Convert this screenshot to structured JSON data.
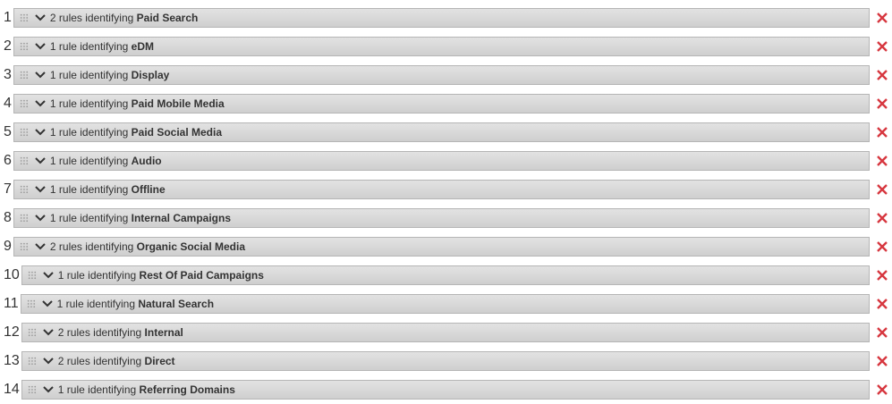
{
  "rules": [
    {
      "index": "1",
      "count": "2 rules identifying",
      "name": "Paid Search"
    },
    {
      "index": "2",
      "count": "1 rule identifying",
      "name": "eDM"
    },
    {
      "index": "3",
      "count": "1 rule identifying",
      "name": "Display"
    },
    {
      "index": "4",
      "count": "1 rule identifying",
      "name": "Paid Mobile Media"
    },
    {
      "index": "5",
      "count": "1 rule identifying",
      "name": "Paid Social Media"
    },
    {
      "index": "6",
      "count": "1 rule identifying",
      "name": "Audio"
    },
    {
      "index": "7",
      "count": "1 rule identifying",
      "name": "Offline"
    },
    {
      "index": "8",
      "count": "1 rule identifying",
      "name": "Internal Campaigns"
    },
    {
      "index": "9",
      "count": "2 rules identifying",
      "name": "Organic Social Media"
    },
    {
      "index": "10",
      "count": "1 rule identifying",
      "name": "Rest Of Paid Campaigns"
    },
    {
      "index": "11",
      "count": "1 rule identifying",
      "name": "Natural Search"
    },
    {
      "index": "12",
      "count": "2 rules identifying",
      "name": "Internal"
    },
    {
      "index": "13",
      "count": "2 rules identifying",
      "name": "Direct"
    },
    {
      "index": "14",
      "count": "1 rule identifying",
      "name": "Referring Domains"
    }
  ],
  "icons": {
    "drag": "grip-icon",
    "expand": "chevron-down-icon",
    "delete": "close-icon"
  },
  "colors": {
    "delete": "#d7373f"
  }
}
